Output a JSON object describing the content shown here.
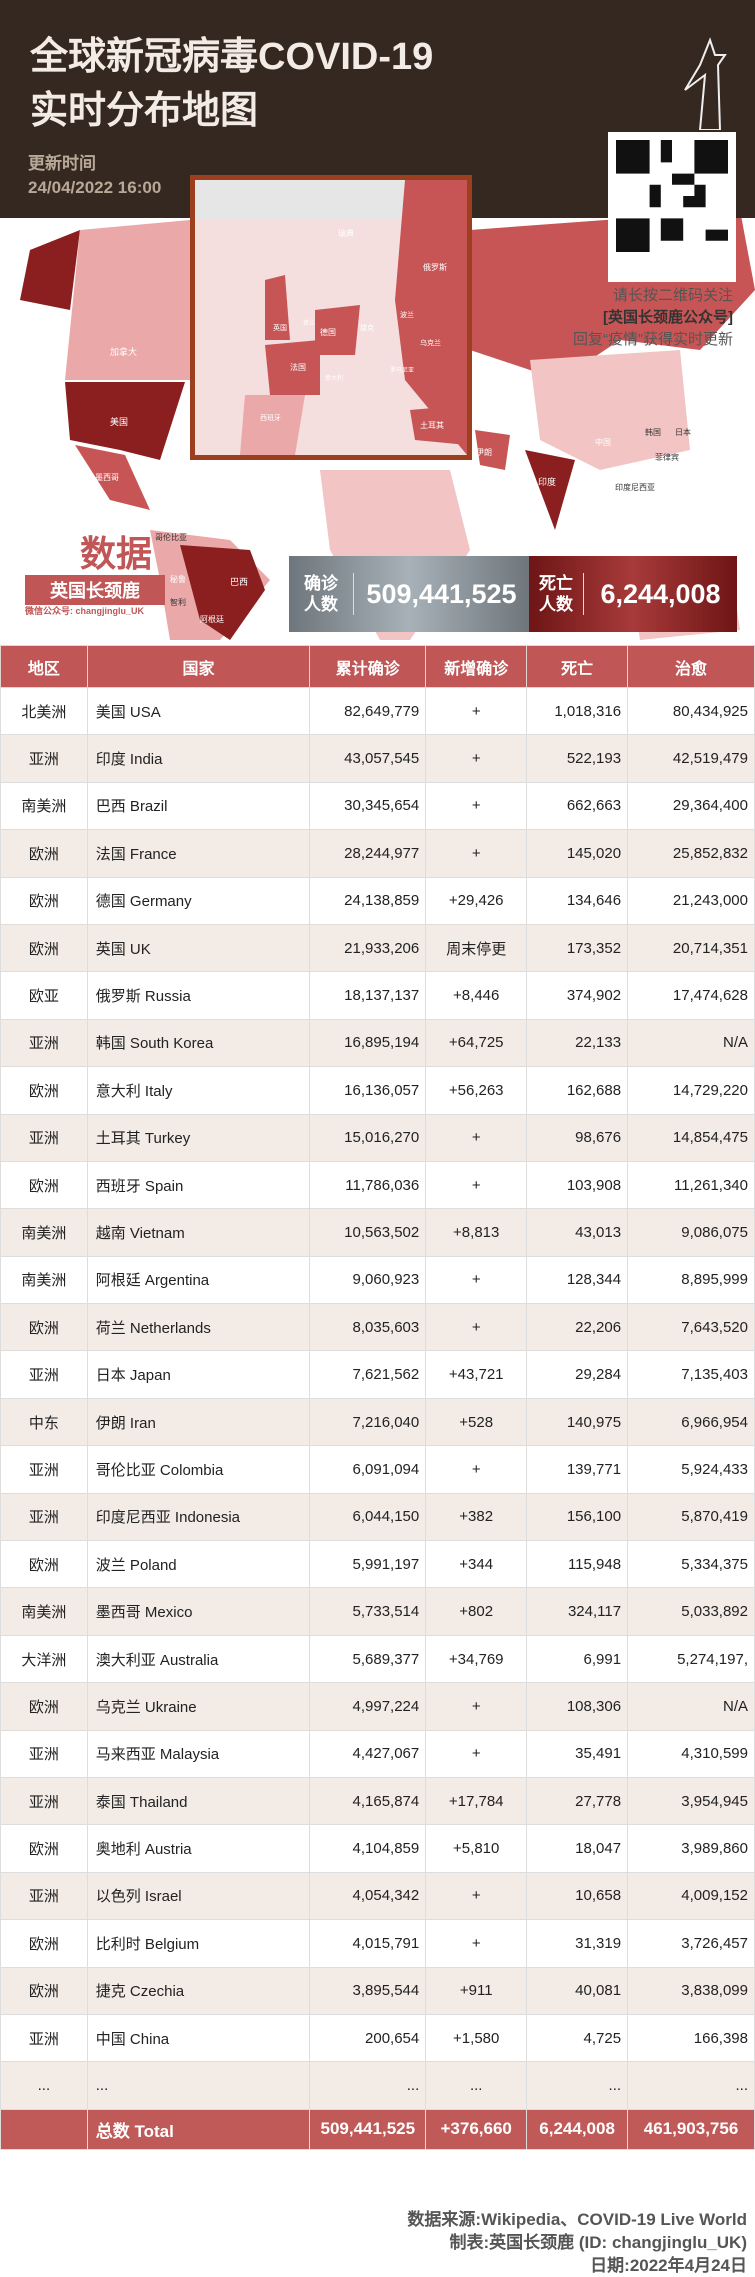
{
  "header": {
    "title_line1": "全球新冠病毒COVID-19",
    "title_line2": "实时分布地图",
    "update_label": "更新时间",
    "update_time": "24/04/2022 16:00"
  },
  "map_labels": {
    "sweden": "瑞典",
    "russia": "俄罗斯",
    "uk": "英国",
    "netherlands": "荷兰",
    "germany": "德国",
    "czech": "捷克",
    "poland": "波兰",
    "ukraine": "乌克兰",
    "france": "法国",
    "italy": "意大利",
    "romania": "罗马尼亚",
    "spain": "西班牙",
    "turkey": "土耳其",
    "iran": "伊朗",
    "saudi": "沙特",
    "india": "印度",
    "china": "中国",
    "korea": "韩国",
    "japan": "日本",
    "philippines": "菲律宾",
    "indonesia": "印度尼西亚",
    "canada": "加拿大",
    "usa": "美国",
    "mexico": "墨西哥",
    "colombia": "哥伦比亚",
    "peru": "秘鲁",
    "brazil": "巴西",
    "chile": "智利",
    "argentina": "阿根廷"
  },
  "qr": {
    "line1": "请长按二维码关注",
    "line2": "[英国长颈鹿公众号]",
    "line3": "回复“疫情”获得实时更新"
  },
  "logo": {
    "big": "数据",
    "name": "英国长颈鹿",
    "wechat": "微信公众号: changjinglu_UK"
  },
  "stats": {
    "confirmed_label1": "确诊",
    "confirmed_label2": "人数",
    "confirmed": "509,441,525",
    "deaths_label1": "死亡",
    "deaths_label2": "人数",
    "deaths": "6,244,008"
  },
  "colors": {
    "header": "#352820",
    "accent": "#c05656",
    "dark_red": "#8b1e1e"
  },
  "table": {
    "headers": [
      "地区",
      "国家",
      "累计确诊",
      "新增确诊",
      "死亡",
      "治愈"
    ],
    "rows": [
      [
        "北美洲",
        "美国 USA",
        "82,649,779",
        "+",
        "1,018,316",
        "80,434,925"
      ],
      [
        "亚洲",
        "印度 India",
        "43,057,545",
        "+",
        "522,193",
        "42,519,479"
      ],
      [
        "南美洲",
        "巴西 Brazil",
        "30,345,654",
        "+",
        "662,663",
        "29,364,400"
      ],
      [
        "欧洲",
        "法国 France",
        "28,244,977",
        "+",
        "145,020",
        "25,852,832"
      ],
      [
        "欧洲",
        "德国 Germany",
        "24,138,859",
        "+29,426",
        "134,646",
        "21,243,000"
      ],
      [
        "欧洲",
        "英国 UK",
        "21,933,206",
        "周末停更",
        "173,352",
        "20,714,351"
      ],
      [
        "欧亚",
        "俄罗斯 Russia",
        "18,137,137",
        "+8,446",
        "374,902",
        "17,474,628"
      ],
      [
        "亚洲",
        "韩国 South Korea",
        "16,895,194",
        "+64,725",
        "22,133",
        "N/A"
      ],
      [
        "欧洲",
        "意大利 Italy",
        "16,136,057",
        "+56,263",
        "162,688",
        "14,729,220"
      ],
      [
        "亚洲",
        "土耳其 Turkey",
        "15,016,270",
        "+",
        "98,676",
        "14,854,475"
      ],
      [
        "欧洲",
        "西班牙 Spain",
        "11,786,036",
        "+",
        "103,908",
        "11,261,340"
      ],
      [
        "南美洲",
        "越南 Vietnam",
        "10,563,502",
        "+8,813",
        "43,013",
        "9,086,075"
      ],
      [
        "南美洲",
        "阿根廷 Argentina",
        "9,060,923",
        "+",
        "128,344",
        "8,895,999"
      ],
      [
        "欧洲",
        "荷兰 Netherlands",
        "8,035,603",
        "+",
        "22,206",
        "7,643,520"
      ],
      [
        "亚洲",
        "日本 Japan",
        "7,621,562",
        "+43,721",
        "29,284",
        "7,135,403"
      ],
      [
        "中东",
        "伊朗 Iran",
        "7,216,040",
        "+528",
        "140,975",
        "6,966,954"
      ],
      [
        "亚洲",
        "哥伦比亚 Colombia",
        "6,091,094",
        "+",
        "139,771",
        "5,924,433"
      ],
      [
        "亚洲",
        "印度尼西亚 Indonesia",
        "6,044,150",
        "+382",
        "156,100",
        "5,870,419"
      ],
      [
        "欧洲",
        "波兰 Poland",
        "5,991,197",
        "+344",
        "115,948",
        "5,334,375"
      ],
      [
        "南美洲",
        "墨西哥 Mexico",
        "5,733,514",
        "+802",
        "324,117",
        "5,033,892"
      ],
      [
        "大洋洲",
        "澳大利亚 Australia",
        "5,689,377",
        "+34,769",
        "6,991",
        "5,274,197,"
      ],
      [
        "欧洲",
        "乌克兰 Ukraine",
        "4,997,224",
        "+",
        "108,306",
        "N/A"
      ],
      [
        "亚洲",
        "马来西亚 Malaysia",
        "4,427,067",
        "+",
        "35,491",
        "4,310,599"
      ],
      [
        "亚洲",
        "泰国 Thailand",
        "4,165,874",
        "+17,784",
        "27,778",
        "3,954,945"
      ],
      [
        "欧洲",
        "奥地利 Austria",
        "4,104,859",
        "+5,810",
        "18,047",
        "3,989,860"
      ],
      [
        "亚洲",
        "以色列 Israel",
        "4,054,342",
        "+",
        "10,658",
        "4,009,152"
      ],
      [
        "欧洲",
        "比利时 Belgium",
        "4,015,791",
        "+",
        "31,319",
        "3,726,457"
      ],
      [
        "欧洲",
        "捷克 Czechia",
        "3,895,544",
        "+911",
        "40,081",
        "3,838,099"
      ],
      [
        "亚洲",
        "中国 China",
        "200,654",
        "+1,580",
        "4,725",
        "166,398"
      ],
      [
        "...",
        "...",
        "...",
        "...",
        "...",
        "..."
      ]
    ],
    "total": [
      "",
      "总数 Total",
      "509,441,525",
      "+376,660",
      "6,244,008",
      "461,903,756"
    ]
  },
  "footer": {
    "source": "数据来源:Wikipedia、COVID-19 Live World",
    "maker": "制表:英国长颈鹿 (ID: changjinglu_UK)",
    "date": "日期:2022年4月24日"
  }
}
